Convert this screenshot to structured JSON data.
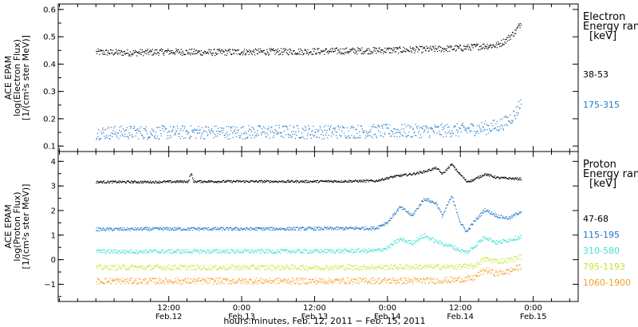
{
  "chart_data": [
    {
      "type": "scatter",
      "title": "",
      "ylabel_lines": [
        "ACE EPAM",
        "log(Electron Flux)",
        "[1/(cm²s ster MeV)]"
      ],
      "ylim": [
        0.08,
        0.62
      ],
      "yticks": [
        0.1,
        0.2,
        0.3,
        0.4,
        0.5,
        0.6
      ],
      "ytick_labels": [
        "0.1",
        "0.2",
        "0.3",
        "0.4",
        "0.5",
        "0.6"
      ],
      "legend_title": [
        "Electron",
        "Energy ran",
        "[keV]"
      ],
      "series": [
        {
          "name": "38-53",
          "color": "#000000",
          "points": [
            [
              0,
              0.445
            ],
            [
              6,
              0.443
            ],
            [
              12,
              0.447
            ],
            [
              18,
              0.444
            ],
            [
              24,
              0.446
            ],
            [
              30,
              0.447
            ],
            [
              36,
              0.448
            ],
            [
              42,
              0.45
            ],
            [
              48,
              0.452
            ],
            [
              54,
              0.455
            ],
            [
              60,
              0.46
            ],
            [
              64,
              0.468
            ],
            [
              66,
              0.47
            ],
            [
              67.5,
              0.49
            ],
            [
              69,
              0.52
            ],
            [
              70,
              0.555
            ]
          ]
        },
        {
          "name": "175-315",
          "color": "#1e78c8",
          "points": [
            [
              0,
              0.15
            ],
            [
              6,
              0.152
            ],
            [
              12,
              0.151
            ],
            [
              18,
              0.153
            ],
            [
              24,
              0.152
            ],
            [
              30,
              0.154
            ],
            [
              36,
              0.153
            ],
            [
              42,
              0.155
            ],
            [
              48,
              0.156
            ],
            [
              54,
              0.157
            ],
            [
              60,
              0.16
            ],
            [
              64,
              0.168
            ],
            [
              66,
              0.175
            ],
            [
              67.5,
              0.19
            ],
            [
              69,
              0.22
            ],
            [
              70,
              0.265
            ]
          ]
        }
      ]
    },
    {
      "type": "scatter",
      "title": "",
      "ylabel_lines": [
        "ACE EPAM",
        "log(Proton Flux)",
        "[1/(cm²s ster MeV)]"
      ],
      "ylim": [
        -1.7,
        4.4
      ],
      "yticks": [
        -1,
        0,
        1,
        2,
        3,
        4
      ],
      "ytick_labels": [
        "−1",
        "0",
        "1",
        "2",
        "3",
        "4"
      ],
      "legend_title": [
        "Proton",
        "Energy ran",
        "[keV]"
      ],
      "series": [
        {
          "name": "47-68",
          "color": "#000000",
          "points": [
            [
              0,
              3.18
            ],
            [
              10,
              3.18
            ],
            [
              15.2,
              3.2
            ],
            [
              15.6,
              3.55
            ],
            [
              16,
              3.2
            ],
            [
              24,
              3.2
            ],
            [
              36,
              3.2
            ],
            [
              46,
              3.22
            ],
            [
              49,
              3.4
            ],
            [
              52,
              3.5
            ],
            [
              54,
              3.6
            ],
            [
              56,
              3.75
            ],
            [
              57,
              3.5
            ],
            [
              58.5,
              3.9
            ],
            [
              59.5,
              3.6
            ],
            [
              61,
              3.2
            ],
            [
              62,
              3.25
            ],
            [
              64,
              3.5
            ],
            [
              66,
              3.35
            ],
            [
              70,
              3.3
            ]
          ]
        },
        {
          "name": "115-195",
          "color": "#1e78c8",
          "points": [
            [
              0,
              1.25
            ],
            [
              12,
              1.27
            ],
            [
              24,
              1.27
            ],
            [
              36,
              1.28
            ],
            [
              46,
              1.3
            ],
            [
              48,
              1.55
            ],
            [
              50,
              2.15
            ],
            [
              51,
              2.0
            ],
            [
              52,
              1.8
            ],
            [
              54,
              2.5
            ],
            [
              56,
              2.3
            ],
            [
              57,
              1.8
            ],
            [
              58.5,
              2.6
            ],
            [
              60,
              1.5
            ],
            [
              61,
              1.15
            ],
            [
              62,
              1.5
            ],
            [
              64,
              2.05
            ],
            [
              66,
              1.8
            ],
            [
              68,
              1.7
            ],
            [
              70,
              2.0
            ]
          ]
        },
        {
          "name": "310-580",
          "color": "#40e0d0",
          "points": [
            [
              0,
              0.35
            ],
            [
              12,
              0.35
            ],
            [
              24,
              0.36
            ],
            [
              36,
              0.36
            ],
            [
              46,
              0.38
            ],
            [
              48,
              0.5
            ],
            [
              50,
              0.85
            ],
            [
              52,
              0.7
            ],
            [
              54,
              1.0
            ],
            [
              56,
              0.75
            ],
            [
              58,
              0.6
            ],
            [
              60,
              0.4
            ],
            [
              61,
              0.3
            ],
            [
              62,
              0.5
            ],
            [
              64,
              0.95
            ],
            [
              66,
              0.7
            ],
            [
              70,
              0.95
            ]
          ]
        },
        {
          "name": "795-1193",
          "color": "#c8e632",
          "points": [
            [
              0,
              -0.3
            ],
            [
              12,
              -0.3
            ],
            [
              24,
              -0.3
            ],
            [
              36,
              -0.3
            ],
            [
              46,
              -0.29
            ],
            [
              52,
              -0.28
            ],
            [
              58,
              -0.28
            ],
            [
              62,
              -0.25
            ],
            [
              64,
              0.05
            ],
            [
              66,
              -0.05
            ],
            [
              68,
              0.0
            ],
            [
              70,
              0.15
            ]
          ]
        },
        {
          "name": "1060-1900",
          "color": "#f0a028",
          "points": [
            [
              0,
              -0.85
            ],
            [
              12,
              -0.85
            ],
            [
              24,
              -0.85
            ],
            [
              36,
              -0.85
            ],
            [
              46,
              -0.84
            ],
            [
              52,
              -0.84
            ],
            [
              58,
              -0.82
            ],
            [
              62,
              -0.75
            ],
            [
              64,
              -0.4
            ],
            [
              66,
              -0.55
            ],
            [
              68,
              -0.45
            ],
            [
              70,
              -0.25
            ]
          ]
        }
      ]
    }
  ],
  "x_axis": {
    "xlabel": "hours:minutes, Feb. 12, 2011 − Feb. 15, 2011",
    "xlim": [
      -6.2,
      79.4
    ],
    "ticks": [
      {
        "hour": 12,
        "time": "12:00",
        "date": "Feb.12"
      },
      {
        "hour": 24,
        "time": "0:00",
        "date": "Feb.13"
      },
      {
        "hour": 36,
        "time": "12:00",
        "date": "Feb.13"
      },
      {
        "hour": 48,
        "time": "0:00",
        "date": "Feb.14"
      },
      {
        "hour": 60,
        "time": "12:00",
        "date": "Feb.14"
      },
      {
        "hour": 72,
        "time": "0:00",
        "date": "Feb.15"
      }
    ]
  }
}
